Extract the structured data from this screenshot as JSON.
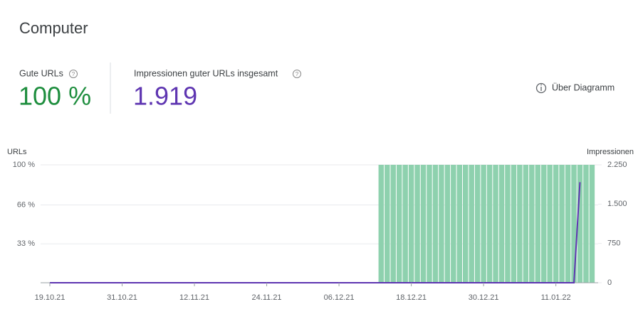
{
  "header": {
    "title": "Computer"
  },
  "summary": [
    {
      "label": "Gute URLs",
      "value": "100 %"
    },
    {
      "label": "Impressionen guter URLs insgesamt",
      "value": "1.919"
    }
  ],
  "about_link": "Über Diagramm",
  "chart_data": {
    "type": "bar",
    "y_label": "URLs",
    "y2_label": "Impressionen",
    "categories": [
      "19.10.21",
      null,
      null,
      null,
      null,
      null,
      null,
      null,
      null,
      null,
      null,
      null,
      "31.10.21",
      null,
      null,
      null,
      null,
      null,
      null,
      null,
      null,
      null,
      null,
      null,
      "12.11.21",
      null,
      null,
      null,
      null,
      null,
      null,
      null,
      null,
      null,
      null,
      null,
      "24.11.21",
      null,
      null,
      null,
      null,
      null,
      null,
      null,
      null,
      null,
      null,
      null,
      "06.12.21",
      null,
      null,
      null,
      null,
      null,
      null,
      null,
      null,
      null,
      null,
      null,
      "18.12.21",
      null,
      null,
      null,
      null,
      null,
      null,
      null,
      null,
      null,
      null,
      null,
      "30.12.21",
      null,
      null,
      null,
      null,
      null,
      null,
      null,
      null,
      null,
      null,
      null,
      "11.01.22",
      null,
      null,
      null,
      null,
      null,
      null
    ],
    "series": [
      {
        "type": "bar",
        "color": "#8ed1ae",
        "values": [
          null,
          null,
          null,
          null,
          null,
          null,
          null,
          null,
          null,
          null,
          null,
          null,
          null,
          null,
          null,
          null,
          null,
          null,
          null,
          null,
          null,
          null,
          null,
          null,
          null,
          null,
          null,
          null,
          null,
          null,
          null,
          null,
          null,
          null,
          null,
          null,
          null,
          null,
          null,
          null,
          null,
          null,
          null,
          null,
          null,
          null,
          null,
          null,
          null,
          null,
          null,
          null,
          null,
          null,
          null,
          100,
          100,
          100,
          100,
          100,
          100,
          100,
          100,
          100,
          100,
          100,
          100,
          100,
          100,
          100,
          100,
          100,
          100,
          100,
          100,
          100,
          100,
          100,
          100,
          100,
          100,
          100,
          100,
          100,
          100,
          100,
          100,
          100,
          100,
          100,
          100
        ]
      },
      {
        "type": "line",
        "axis": "y2",
        "color": "#5e35b1",
        "values": [
          0,
          0,
          0,
          0,
          0,
          0,
          0,
          0,
          0,
          0,
          0,
          0,
          0,
          0,
          0,
          0,
          0,
          0,
          0,
          0,
          0,
          0,
          0,
          0,
          0,
          0,
          0,
          0,
          0,
          0,
          0,
          0,
          0,
          0,
          0,
          0,
          0,
          0,
          0,
          0,
          0,
          0,
          0,
          0,
          0,
          0,
          0,
          0,
          0,
          0,
          0,
          0,
          0,
          0,
          0,
          0,
          0,
          0,
          0,
          0,
          0,
          0,
          0,
          0,
          0,
          0,
          0,
          0,
          0,
          0,
          0,
          0,
          0,
          0,
          0,
          0,
          0,
          0,
          0,
          0,
          0,
          0,
          0,
          0,
          0,
          0,
          0,
          0,
          1919,
          null,
          null
        ]
      }
    ],
    "ylim": [
      0,
      100
    ],
    "yticks": [
      {
        "value": 33,
        "label": "33 %"
      },
      {
        "value": 66,
        "label": "66 %"
      },
      {
        "value": 100,
        "label": "100 %"
      }
    ],
    "y2lim": [
      0,
      2250
    ],
    "y2ticks": [
      0,
      {
        "value": 750,
        "label": "750"
      },
      {
        "value": 1500,
        "label": "1.500"
      },
      {
        "value": 2250,
        "label": "2.250"
      }
    ],
    "grid": true
  }
}
